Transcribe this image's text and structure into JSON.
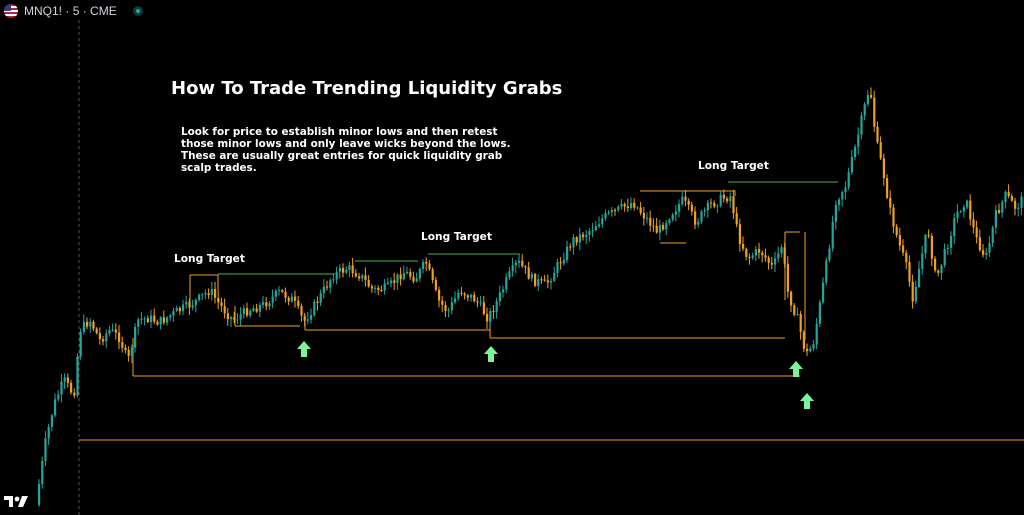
{
  "header": {
    "symbol": "MNQ1!",
    "interval": "5",
    "exchange": "CME",
    "separator": " · "
  },
  "colors": {
    "up": "#26a69a",
    "down": "#f0a020",
    "level": "#f0a020",
    "target": "#4caf50",
    "arrow": "#7cf59a",
    "background": "#000000"
  },
  "chart_data": {
    "type": "candlestick",
    "title": "How To Trade Trending Liquidity Grabs",
    "annotation": "Look for price to establish minor lows and then retest those minor lows and only leave wicks beyond the lows. These are usually great entries for quick liquidity grab scalp trades.",
    "labels": [
      "Long Target",
      "Long Target",
      "Long Target"
    ],
    "signals": [
      "long-arrow",
      "long-arrow",
      "long-arrow",
      "long-arrow"
    ]
  },
  "icons": {
    "flag": "us-flag-icon",
    "status": "market-status-icon",
    "logo": "tradingview-logo-icon"
  }
}
